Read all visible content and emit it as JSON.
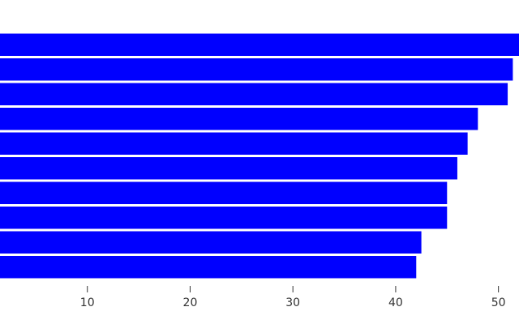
{
  "chart_data": {
    "type": "hbar",
    "categories": [
      null,
      null,
      null,
      null,
      null,
      null,
      null,
      null,
      null,
      null
    ],
    "values": [
      52,
      51.4,
      50.9,
      48,
      47,
      46,
      45,
      45,
      42.5,
      42
    ],
    "color": "#0000ff",
    "xlim": [
      1.5,
      52
    ],
    "xticks": [
      10,
      20,
      30,
      40,
      50
    ]
  }
}
